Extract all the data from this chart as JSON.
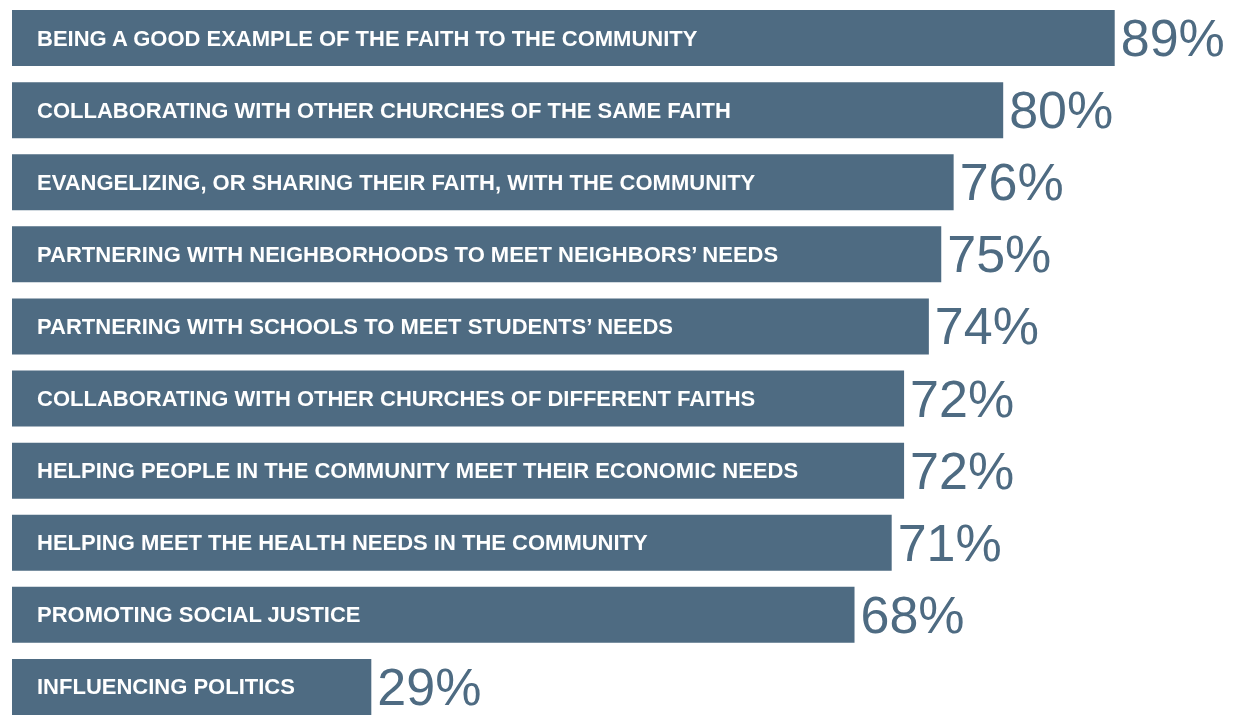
{
  "chart_data": {
    "type": "bar",
    "orientation": "horizontal",
    "categories": [
      "BEING A GOOD EXAMPLE OF THE FAITH TO THE COMMUNITY",
      "COLLABORATING WITH OTHER CHURCHES OF THE SAME FAITH",
      "EVANGELIZING, OR SHARING THEIR FAITH, WITH THE COMMUNITY",
      "PARTNERING WITH NEIGHBORHOODS TO MEET NEIGHBORS’ NEEDS",
      "PARTNERING WITH SCHOOLS TO MEET STUDENTS’ NEEDS",
      "COLLABORATING WITH OTHER CHURCHES OF DIFFERENT FAITHS",
      "HELPING PEOPLE IN THE COMMUNITY MEET THEIR ECONOMIC NEEDS",
      "HELPING MEET THE HEALTH NEEDS IN THE COMMUNITY",
      "PROMOTING SOCIAL JUSTICE",
      "INFLUENCING POLITICS"
    ],
    "values": [
      89,
      80,
      76,
      75,
      74,
      72,
      72,
      71,
      68,
      29
    ],
    "value_labels": [
      "89%",
      "80%",
      "76%",
      "75%",
      "74%",
      "72%",
      "72%",
      "71%",
      "68%",
      "29%"
    ],
    "color": "#4e6b82",
    "tick_labels": "y",
    "grid": false
  }
}
